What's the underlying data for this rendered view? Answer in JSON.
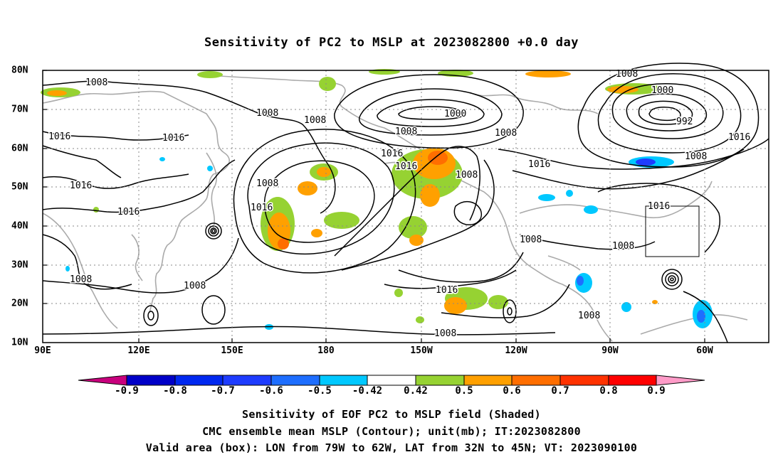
{
  "title": "Sensitivity of PC2 to MSLP at 2023082800 +0.0 day",
  "lat_labels": [
    "80N",
    "70N",
    "60N",
    "50N",
    "40N",
    "30N",
    "20N",
    "10N"
  ],
  "lon_labels": [
    "90E",
    "120E",
    "150E",
    "180",
    "150W",
    "120W",
    "90W",
    "60W"
  ],
  "colorbar": {
    "labels": [
      "-0.9",
      "-0.8",
      "-0.7",
      "-0.6",
      "-0.5",
      "-0.42",
      "0.42",
      "0.5",
      "0.6",
      "0.7",
      "0.8",
      "0.9"
    ],
    "colors": [
      "#c8007d",
      "#0000c8",
      "#0028f0",
      "#1e3cff",
      "#1e6eff",
      "#00c8ff",
      "#ffffff",
      "#96d232",
      "#ffa000",
      "#ff6e00",
      "#ff3200",
      "#ff0000",
      "#ff9bc8"
    ]
  },
  "contour_labels": [
    "1008",
    "1008",
    "1016",
    "1016",
    "1016",
    "1016",
    "1008",
    "1008",
    "1016",
    "1008",
    "1008",
    "1000",
    "1008",
    "1008",
    "1016",
    "1016",
    "1016",
    "1008",
    "1016",
    "1008",
    "1000",
    "992",
    "1008",
    "1016",
    "1008",
    "1016",
    "1008",
    "1008",
    "1008"
  ],
  "valid_box": {
    "lon_from": "79W",
    "lon_to": "62W",
    "lat_from": "32N",
    "lat_to": "45N"
  },
  "captions": [
    "Sensitivity of EOF PC2 to MSLP field (Shaded)",
    "CMC ensemble mean MSLP (Contour); unit(mb); IT:2023082800",
    "Valid area (box): LON from 79W to 62W, LAT from 32N to 45N; VT: 2023090100"
  ]
}
